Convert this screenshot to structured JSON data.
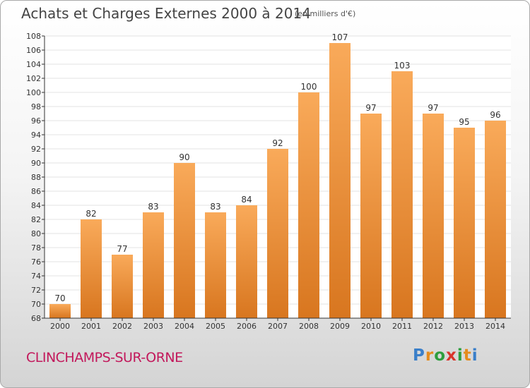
{
  "header": {
    "title": "Achats et Charges Externes 2000 à 2014",
    "unit": "(en milliers d'€)"
  },
  "footer": {
    "commune": "CLINCHAMPS-SUR-ORNE",
    "brand": "Proxiti",
    "brand_colors": [
      "#3a7fc9",
      "#e58b1c",
      "#2e9e3e",
      "#d9342b",
      "#2e9e3e",
      "#e58b1c",
      "#3a7fc9"
    ]
  },
  "colors": {
    "bar_top": "#f9aa5a",
    "bar_bottom": "#d8761f",
    "axis": "#333333",
    "grid": "#e3e3e3"
  },
  "chart_data": {
    "type": "bar",
    "categories": [
      "2000",
      "2001",
      "2002",
      "2003",
      "2004",
      "2005",
      "2006",
      "2007",
      "2008",
      "2009",
      "2010",
      "2011",
      "2012",
      "2013",
      "2014"
    ],
    "values": [
      70,
      82,
      77,
      83,
      90,
      83,
      84,
      92,
      100,
      107,
      97,
      103,
      97,
      95,
      96
    ],
    "ylim": [
      68,
      108
    ],
    "yticks": [
      68,
      70,
      72,
      74,
      76,
      78,
      80,
      82,
      84,
      86,
      88,
      90,
      92,
      94,
      96,
      98,
      100,
      102,
      104,
      106,
      108
    ],
    "title": "Achats et Charges Externes 2000 à 2014",
    "xlabel": "",
    "ylabel": "",
    "grid": true
  }
}
